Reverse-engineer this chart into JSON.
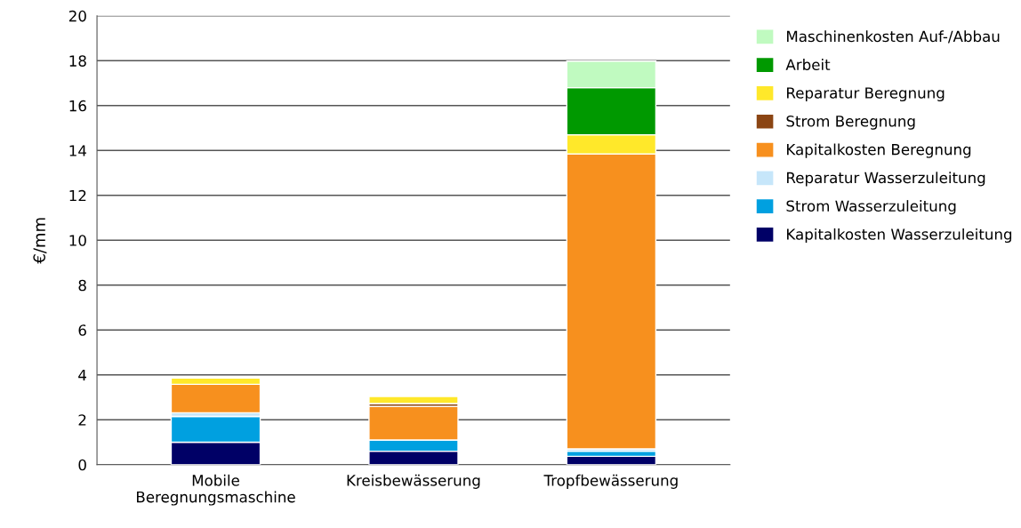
{
  "chart_data": {
    "type": "bar",
    "stacked": true,
    "ylabel": "€/mm",
    "categories": [
      "Mobile\nBeregnungsmaschine",
      "Kreisbewässerung",
      "Tropfbewässerung"
    ],
    "series": [
      {
        "name": "Kapitalkosten Wasserzuleitung",
        "color": "#000066",
        "values": [
          1.0,
          0.6,
          0.37
        ]
      },
      {
        "name": "Strom Wasserzuleitung",
        "color": "#00a0e0",
        "values": [
          1.15,
          0.5,
          0.23
        ]
      },
      {
        "name": "Reparatur Wasserzuleitung",
        "color": "#c6e6fa",
        "values": [
          0.16,
          null,
          0.1
        ]
      },
      {
        "name": "Kapitalkosten Beregnung",
        "color": "#f7901e",
        "values": [
          1.27,
          1.5,
          13.15
        ]
      },
      {
        "name": "Strom Beregnung",
        "color": "#8b4513",
        "values": [
          null,
          0.12,
          null
        ]
      },
      {
        "name": "Reparatur Beregnung",
        "color": "#ffe82a",
        "values": [
          0.28,
          0.32,
          0.85
        ]
      },
      {
        "name": "Arbeit",
        "color": "#009900",
        "values": [
          null,
          null,
          2.1
        ]
      },
      {
        "name": "Maschinenkosten Auf-/Abbau",
        "color": "#c0fac0",
        "values": [
          null,
          null,
          1.18
        ]
      }
    ],
    "ylim": [
      0,
      20
    ],
    "yticks": [
      0,
      2,
      4,
      6,
      8,
      10,
      12,
      14,
      16,
      18,
      20
    ],
    "grid": "y",
    "legend": "right"
  }
}
